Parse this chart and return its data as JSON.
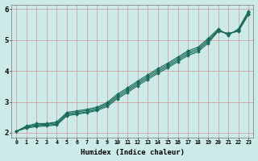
{
  "title": "",
  "xlabel": "Humidex (Indice chaleur)",
  "ylabel": "",
  "xlim": [
    -0.5,
    23.5
  ],
  "ylim": [
    1.85,
    6.15
  ],
  "yticks": [
    2,
    3,
    4,
    5,
    6
  ],
  "xtick_labels": [
    "0",
    "1",
    "2",
    "3",
    "4",
    "5",
    "6",
    "7",
    "8",
    "9",
    "10",
    "11",
    "12",
    "13",
    "14",
    "15",
    "16",
    "17",
    "18",
    "19",
    "20",
    "21",
    "22",
    "23"
  ],
  "bg_color": "#cceae8",
  "grid_color": "#d4a0a0",
  "line_color": "#1a6b5a",
  "lines": [
    [
      2.05,
      2.15,
      2.2,
      2.22,
      2.25,
      2.55,
      2.6,
      2.65,
      2.72,
      2.85,
      3.1,
      3.3,
      3.52,
      3.72,
      3.92,
      4.1,
      4.3,
      4.5,
      4.62,
      4.9,
      5.28,
      5.22,
      5.28,
      5.82
    ],
    [
      2.05,
      2.18,
      2.23,
      2.25,
      2.28,
      2.58,
      2.63,
      2.68,
      2.75,
      2.9,
      3.15,
      3.35,
      3.57,
      3.77,
      3.97,
      4.15,
      4.35,
      4.55,
      4.67,
      4.95,
      5.3,
      5.2,
      5.3,
      5.86
    ],
    [
      2.05,
      2.2,
      2.26,
      2.28,
      2.32,
      2.62,
      2.67,
      2.72,
      2.79,
      2.94,
      3.2,
      3.4,
      3.62,
      3.82,
      4.02,
      4.2,
      4.4,
      4.6,
      4.72,
      5.0,
      5.33,
      5.18,
      5.33,
      5.9
    ],
    [
      2.05,
      2.22,
      2.3,
      2.3,
      2.35,
      2.66,
      2.71,
      2.76,
      2.83,
      2.98,
      3.25,
      3.45,
      3.67,
      3.87,
      4.07,
      4.25,
      4.45,
      4.65,
      4.77,
      5.05,
      5.36,
      5.15,
      5.36,
      5.94
    ]
  ]
}
